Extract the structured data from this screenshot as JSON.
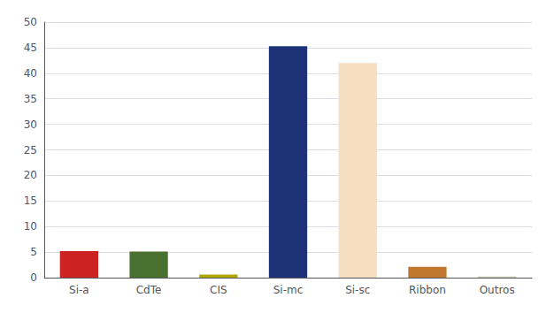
{
  "chart_data": {
    "type": "bar",
    "categories": [
      "Si-a",
      "CdTe",
      "CIS",
      "Si-mc",
      "Si-sc",
      "Ribbon",
      "Outros"
    ],
    "values": [
      5.2,
      5.1,
      0.6,
      45.3,
      42.0,
      2.1,
      0.2
    ],
    "colors": [
      "#cc2222",
      "#4a7030",
      "#b0a800",
      "#1e3278",
      "#f5dfc0",
      "#c07830",
      "#c8c8b0"
    ],
    "ylim": [
      0,
      50
    ],
    "yticks": [
      0,
      5,
      10,
      15,
      20,
      25,
      30,
      35,
      40,
      45,
      50
    ],
    "grid": true
  }
}
